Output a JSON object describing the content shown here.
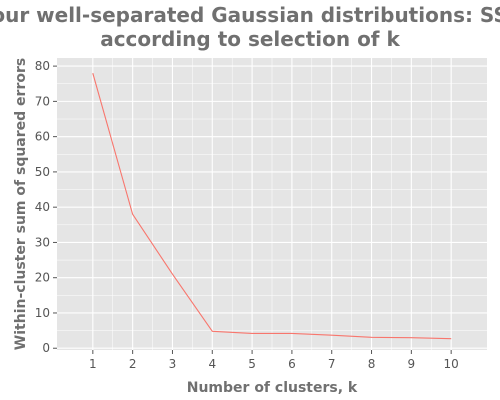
{
  "chart_data": {
    "type": "line",
    "title": [
      "Four well-separated Gaussian distributions: SSE",
      "according to selection of k"
    ],
    "xlabel": "Number of clusters, k",
    "ylabel": "Within-cluster sum of squared errors",
    "x": [
      1,
      2,
      3,
      4,
      5,
      6,
      7,
      8,
      9,
      10
    ],
    "series": [
      {
        "values": [
          78,
          38,
          21,
          4.8,
          4.2,
          4.2,
          3.7,
          3.1,
          3.0,
          2.7
        ],
        "color": "#f8766d"
      }
    ],
    "x_ticks": [
      1,
      2,
      3,
      4,
      5,
      6,
      7,
      8,
      9,
      10
    ],
    "y_ticks": [
      0,
      10,
      20,
      30,
      40,
      50,
      60,
      70,
      80
    ],
    "xlim": [
      0.1,
      10.9
    ],
    "ylim": [
      -0.5,
      82.3
    ],
    "grid": true,
    "grid_color": "#ffffff",
    "panel_background": "#e5e5e5",
    "text_color": "#707070"
  }
}
